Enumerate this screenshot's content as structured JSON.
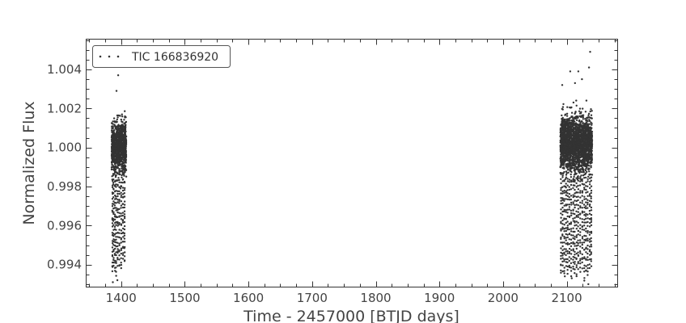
{
  "chart_data": {
    "type": "scatter",
    "title": "",
    "xlabel": "Time - 2457000 [BTJD days]",
    "ylabel": "Normalized Flux",
    "xlim": [
      1345,
      2180
    ],
    "ylim": [
      0.99285,
      1.00555
    ],
    "x_ticks": [
      1400,
      1500,
      1600,
      1700,
      1800,
      1900,
      2000,
      2100
    ],
    "x_tick_labels": [
      "1400",
      "1500",
      "1600",
      "1700",
      "1800",
      "1900",
      "2000",
      "2100"
    ],
    "y_ticks": [
      0.994,
      0.996,
      0.998,
      1.0,
      1.002,
      1.004
    ],
    "y_tick_labels": [
      "0.994",
      "0.996",
      "0.998",
      "1.000",
      "1.002",
      "1.004"
    ],
    "grid": false,
    "legend_position": "top-left",
    "marker_color": "#333333",
    "series": [
      {
        "name": "TIC 166836920",
        "segments": [
          {
            "x_range": [
              1385,
              1408
            ],
            "core_y_range": [
              0.9983,
              1.0018
            ],
            "dips": [
              {
                "x": 1386.3,
                "y_min": 0.9936
              },
              {
                "x": 1388.0,
                "y_min": 0.9939
              },
              {
                "x": 1390.2,
                "y_min": 0.9937
              },
              {
                "x": 1392.0,
                "y_min": 0.9935
              },
              {
                "x": 1394.5,
                "y_min": 0.994
              },
              {
                "x": 1397.1,
                "y_min": 0.9939
              },
              {
                "x": 1400.0,
                "y_min": 0.9938
              },
              {
                "x": 1402.8,
                "y_min": 0.9943
              },
              {
                "x": 1405.4,
                "y_min": 0.9941
              }
            ],
            "outliers": [
              {
                "x": 1392.7,
                "y": 1.0029
              },
              {
                "x": 1395.3,
                "y": 1.0037
              },
              {
                "x": 1386.9,
                "y": 0.9931
              },
              {
                "x": 1394.0,
                "y": 0.9932
              }
            ]
          },
          {
            "x_range": [
              2090,
              2140
            ],
            "core_y_range": [
              0.9984,
              1.002
            ],
            "dips": [
              {
                "x": 2091.0,
                "y_min": 0.9935
              },
              {
                "x": 2093.5,
                "y_min": 0.9937
              },
              {
                "x": 2096.2,
                "y_min": 0.9935
              },
              {
                "x": 2099.0,
                "y_min": 0.9939
              },
              {
                "x": 2101.5,
                "y_min": 0.9936
              },
              {
                "x": 2104.2,
                "y_min": 0.9938
              },
              {
                "x": 2107.0,
                "y_min": 0.9935
              },
              {
                "x": 2110.2,
                "y_min": 0.9937
              },
              {
                "x": 2112.6,
                "y_min": 0.9936
              },
              {
                "x": 2115.4,
                "y_min": 0.9934
              },
              {
                "x": 2118.0,
                "y_min": 0.9938
              },
              {
                "x": 2121.2,
                "y_min": 0.9936
              },
              {
                "x": 2124.5,
                "y_min": 0.9939
              },
              {
                "x": 2127.6,
                "y_min": 0.9932
              },
              {
                "x": 2130.3,
                "y_min": 0.9936
              },
              {
                "x": 2133.0,
                "y_min": 0.9934
              },
              {
                "x": 2136.2,
                "y_min": 0.9939
              },
              {
                "x": 2138.5,
                "y_min": 0.994
              }
            ],
            "outliers": [
              {
                "x": 2136.8,
                "y": 1.0049
              },
              {
                "x": 2105.5,
                "y": 1.0039
              },
              {
                "x": 2118.2,
                "y": 1.0039
              },
              {
                "x": 2113.0,
                "y": 1.0033
              },
              {
                "x": 2135.0,
                "y": 1.0041
              },
              {
                "x": 2093.0,
                "y": 1.0032
              },
              {
                "x": 2124.0,
                "y": 1.0035
              },
              {
                "x": 2134.0,
                "y": 0.993
              },
              {
                "x": 2097.0,
                "y": 0.9934
              },
              {
                "x": 2108.0,
                "y": 0.9933
              }
            ]
          }
        ]
      }
    ]
  }
}
